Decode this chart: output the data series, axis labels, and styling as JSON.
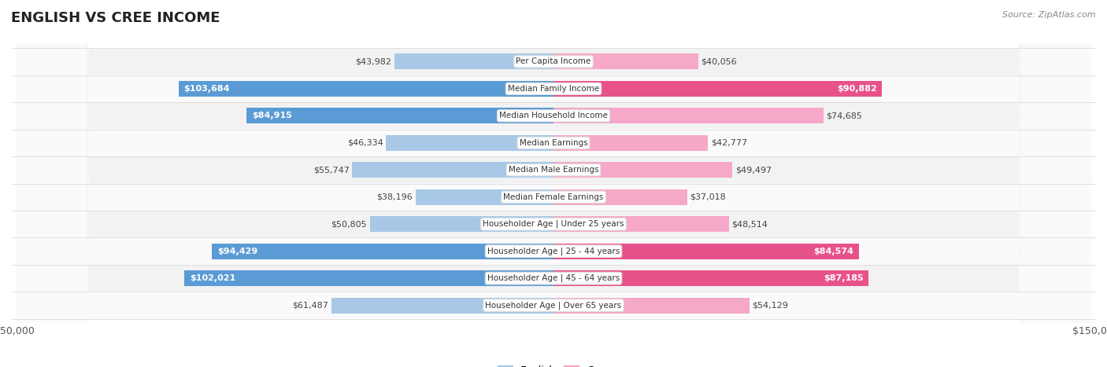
{
  "title": "ENGLISH VS CREE INCOME",
  "source": "Source: ZipAtlas.com",
  "categories": [
    "Per Capita Income",
    "Median Family Income",
    "Median Household Income",
    "Median Earnings",
    "Median Male Earnings",
    "Median Female Earnings",
    "Householder Age | Under 25 years",
    "Householder Age | 25 - 44 years",
    "Householder Age | 45 - 64 years",
    "Householder Age | Over 65 years"
  ],
  "english_values": [
    43982,
    103684,
    84915,
    46334,
    55747,
    38196,
    50805,
    94429,
    102021,
    61487
  ],
  "cree_values": [
    40056,
    90882,
    74685,
    42777,
    49497,
    37018,
    48514,
    84574,
    87185,
    54129
  ],
  "english_labels": [
    "$43,982",
    "$103,684",
    "$84,915",
    "$46,334",
    "$55,747",
    "$38,196",
    "$50,805",
    "$94,429",
    "$102,021",
    "$61,487"
  ],
  "cree_labels": [
    "$40,056",
    "$90,882",
    "$74,685",
    "$42,777",
    "$49,497",
    "$37,018",
    "$48,514",
    "$84,574",
    "$87,185",
    "$54,129"
  ],
  "english_color_light": "#A8C8E8",
  "english_color_dark": "#5B9BD5",
  "cree_color_light": "#F5A8C8",
  "cree_color_dark": "#E8528A",
  "max_val": 150000,
  "bar_height": 0.58,
  "title_fontsize": 13,
  "background_color": "#FFFFFF",
  "row_bg_light": "#F2F2F2",
  "row_bg_white": "#FAFAFA",
  "bold_threshold": 80000
}
